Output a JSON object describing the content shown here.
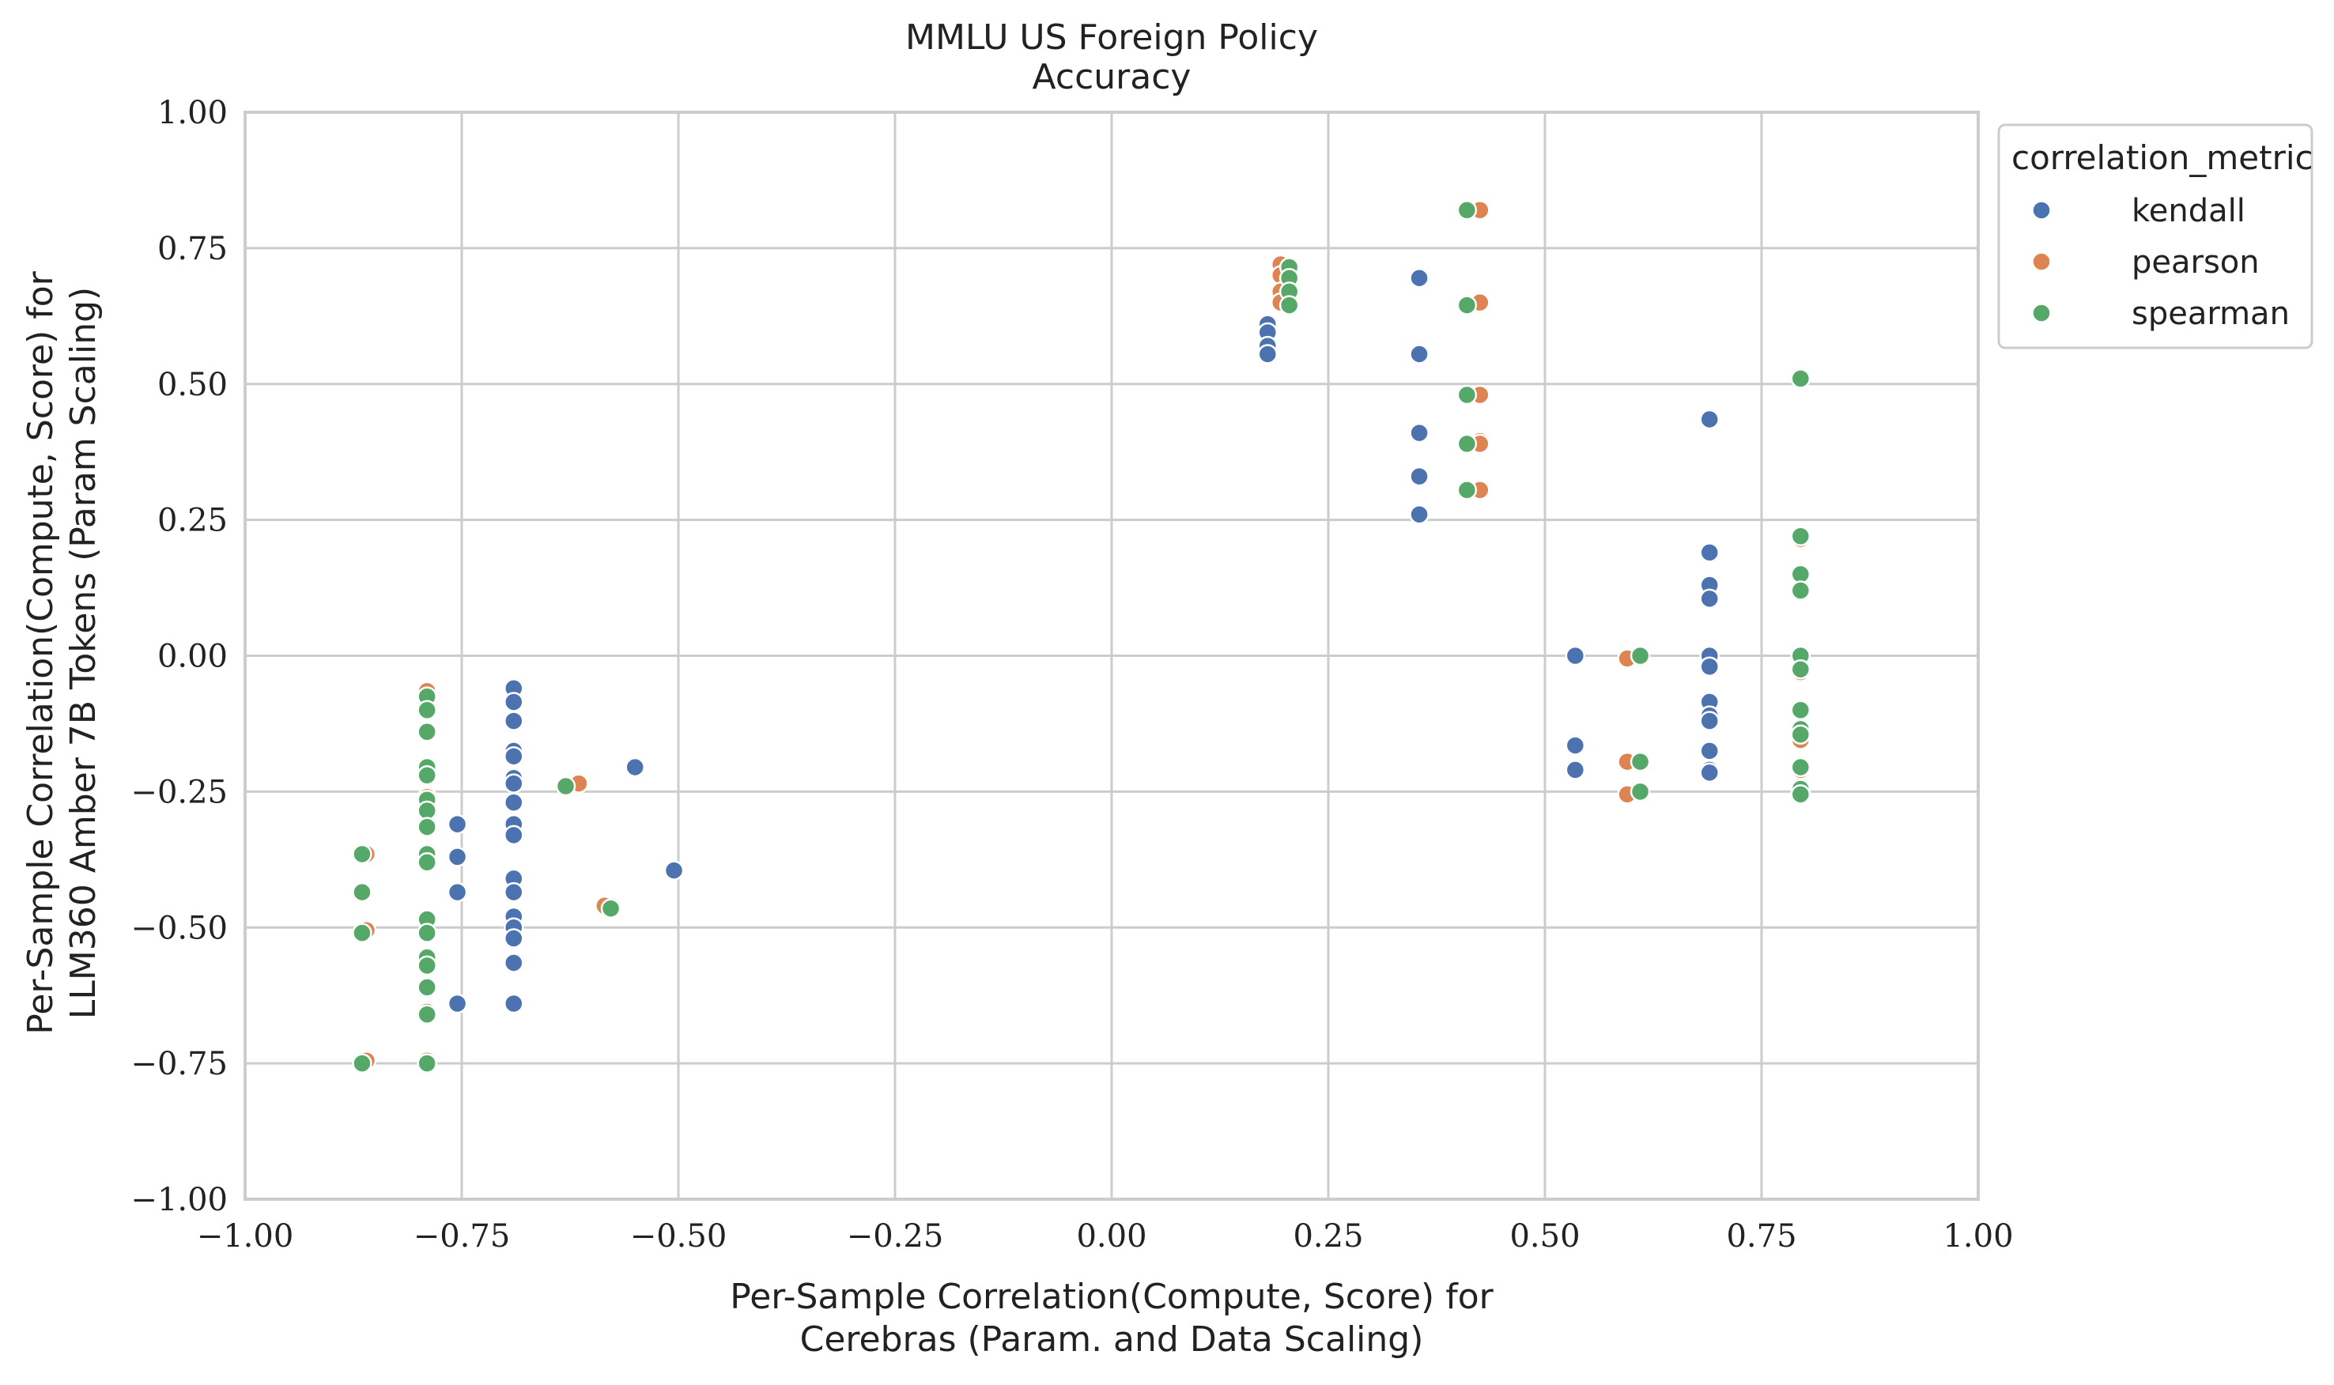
{
  "chart_data": {
    "type": "scatter",
    "title_line1": "MMLU US Foreign Policy",
    "title_line2": "Accuracy",
    "xlabel_line1": "Per-Sample Correlation(Compute, Score) for",
    "xlabel_line2": "Cerebras (Param. and Data Scaling)",
    "ylabel_line1": "Per-Sample Correlation(Compute, Score) for",
    "ylabel_line2": "LLM360 Amber 7B Tokens (Param Scaling)",
    "xlim": [
      -1.0,
      1.0
    ],
    "ylim": [
      -1.0,
      1.0
    ],
    "xticks": [
      -1.0,
      -0.75,
      -0.5,
      -0.25,
      0.0,
      0.25,
      0.5,
      0.75,
      1.0
    ],
    "yticks": [
      -1.0,
      -0.75,
      -0.5,
      -0.25,
      0.0,
      0.25,
      0.5,
      0.75,
      1.0
    ],
    "xtick_labels": [
      "−1.00",
      "−0.75",
      "−0.50",
      "−0.25",
      "0.00",
      "0.25",
      "0.50",
      "0.75",
      "1.00"
    ],
    "ytick_labels": [
      "−1.00",
      "−0.75",
      "−0.50",
      "−0.25",
      "0.00",
      "0.25",
      "0.50",
      "0.75",
      "1.00"
    ],
    "grid": true,
    "legend": {
      "title": "correlation_metric",
      "placement": "outside-top-right"
    },
    "series": [
      {
        "name": "kendall",
        "color": "#4c72b0",
        "points": [
          [
            -0.755,
            -0.31
          ],
          [
            -0.755,
            -0.37
          ],
          [
            -0.755,
            -0.435
          ],
          [
            -0.755,
            -0.64
          ],
          [
            -0.69,
            -0.06
          ],
          [
            -0.69,
            -0.085
          ],
          [
            -0.69,
            -0.12
          ],
          [
            -0.69,
            -0.175
          ],
          [
            -0.69,
            -0.185
          ],
          [
            -0.69,
            -0.225
          ],
          [
            -0.69,
            -0.235
          ],
          [
            -0.69,
            -0.27
          ],
          [
            -0.69,
            -0.31
          ],
          [
            -0.69,
            -0.33
          ],
          [
            -0.69,
            -0.41
          ],
          [
            -0.69,
            -0.435
          ],
          [
            -0.69,
            -0.48
          ],
          [
            -0.69,
            -0.5
          ],
          [
            -0.69,
            -0.52
          ],
          [
            -0.69,
            -0.565
          ],
          [
            -0.69,
            -0.64
          ],
          [
            -0.55,
            -0.205
          ],
          [
            -0.505,
            -0.395
          ],
          [
            0.18,
            0.61
          ],
          [
            0.18,
            0.595
          ],
          [
            0.18,
            0.57
          ],
          [
            0.18,
            0.555
          ],
          [
            0.355,
            0.695
          ],
          [
            0.355,
            0.555
          ],
          [
            0.355,
            0.41
          ],
          [
            0.355,
            0.33
          ],
          [
            0.355,
            0.26
          ],
          [
            0.535,
            0.0
          ],
          [
            0.535,
            -0.165
          ],
          [
            0.535,
            -0.21
          ],
          [
            0.69,
            0.435
          ],
          [
            0.69,
            0.19
          ],
          [
            0.69,
            0.13
          ],
          [
            0.69,
            0.105
          ],
          [
            0.69,
            0.0
          ],
          [
            0.69,
            -0.02
          ],
          [
            0.69,
            -0.085
          ],
          [
            0.69,
            -0.11
          ],
          [
            0.69,
            -0.12
          ],
          [
            0.69,
            -0.175
          ],
          [
            0.69,
            -0.21
          ],
          [
            0.69,
            -0.215
          ]
        ]
      },
      {
        "name": "pearson",
        "color": "#dd8452",
        "points": [
          [
            -0.86,
            -0.365
          ],
          [
            -0.86,
            -0.505
          ],
          [
            -0.86,
            -0.745
          ],
          [
            -0.79,
            -0.065
          ],
          [
            -0.79,
            -0.26
          ],
          [
            -0.79,
            -0.37
          ],
          [
            -0.79,
            -0.655
          ],
          [
            -0.79,
            -0.745
          ],
          [
            -0.615,
            -0.235
          ],
          [
            -0.585,
            -0.46
          ],
          [
            0.195,
            0.72
          ],
          [
            0.195,
            0.7
          ],
          [
            0.195,
            0.67
          ],
          [
            0.195,
            0.65
          ],
          [
            0.425,
            0.82
          ],
          [
            0.425,
            0.65
          ],
          [
            0.425,
            0.48
          ],
          [
            0.425,
            0.395
          ],
          [
            0.425,
            0.39
          ],
          [
            0.425,
            0.305
          ],
          [
            0.595,
            -0.005
          ],
          [
            0.595,
            -0.195
          ],
          [
            0.595,
            -0.255
          ],
          [
            0.795,
            0.51
          ],
          [
            0.795,
            0.215
          ],
          [
            0.795,
            -0.03
          ],
          [
            0.795,
            -0.155
          ],
          [
            0.795,
            -0.21
          ],
          [
            0.795,
            -0.25
          ]
        ]
      },
      {
        "name": "spearman",
        "color": "#55a868",
        "points": [
          [
            -0.865,
            -0.365
          ],
          [
            -0.865,
            -0.435
          ],
          [
            -0.865,
            -0.51
          ],
          [
            -0.865,
            -0.75
          ],
          [
            -0.79,
            -0.075
          ],
          [
            -0.79,
            -0.1
          ],
          [
            -0.79,
            -0.14
          ],
          [
            -0.79,
            -0.205
          ],
          [
            -0.79,
            -0.22
          ],
          [
            -0.79,
            -0.265
          ],
          [
            -0.79,
            -0.285
          ],
          [
            -0.79,
            -0.315
          ],
          [
            -0.79,
            -0.365
          ],
          [
            -0.79,
            -0.38
          ],
          [
            -0.79,
            -0.485
          ],
          [
            -0.79,
            -0.51
          ],
          [
            -0.79,
            -0.555
          ],
          [
            -0.79,
            -0.57
          ],
          [
            -0.79,
            -0.61
          ],
          [
            -0.79,
            -0.66
          ],
          [
            -0.79,
            -0.75
          ],
          [
            -0.63,
            -0.24
          ],
          [
            -0.578,
            -0.465
          ],
          [
            0.205,
            0.715
          ],
          [
            0.205,
            0.695
          ],
          [
            0.205,
            0.67
          ],
          [
            0.205,
            0.645
          ],
          [
            0.41,
            0.82
          ],
          [
            0.41,
            0.645
          ],
          [
            0.41,
            0.48
          ],
          [
            0.41,
            0.39
          ],
          [
            0.41,
            0.305
          ],
          [
            0.61,
            0.0
          ],
          [
            0.61,
            -0.195
          ],
          [
            0.61,
            -0.25
          ],
          [
            0.795,
            0.51
          ],
          [
            0.795,
            0.22
          ],
          [
            0.795,
            0.15
          ],
          [
            0.795,
            0.12
          ],
          [
            0.795,
            0.0
          ],
          [
            0.795,
            -0.025
          ],
          [
            0.795,
            -0.1
          ],
          [
            0.795,
            -0.135
          ],
          [
            0.795,
            -0.145
          ],
          [
            0.795,
            -0.205
          ],
          [
            0.795,
            -0.245
          ],
          [
            0.795,
            -0.255
          ]
        ]
      }
    ]
  }
}
